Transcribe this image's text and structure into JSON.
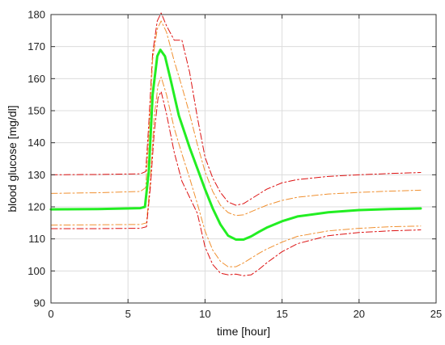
{
  "chart_data": {
    "type": "line",
    "title": "",
    "xlabel": "time [hour]",
    "ylabel": "blood glucose [mg/dl]",
    "xlim": [
      0,
      25
    ],
    "ylim": [
      90,
      180
    ],
    "xticks": [
      0,
      5,
      10,
      15,
      20,
      25
    ],
    "yticks": [
      90,
      100,
      110,
      120,
      130,
      140,
      150,
      160,
      170,
      180
    ],
    "grid": true,
    "legend": "none",
    "series": [
      {
        "color": "#dd1111",
        "style": "dashdot",
        "width": 1,
        "x": [
          0,
          3,
          5.8,
          6.15,
          6.35,
          6.6,
          6.9,
          7.15,
          7.5,
          8.0,
          8.5,
          9.0,
          9.5,
          10.0,
          10.5,
          11.0,
          11.5,
          12.0,
          12.5,
          13.0,
          13.5,
          14.0,
          15.0,
          16.0,
          18.0,
          20.0,
          22.0,
          24.0
        ],
        "y": [
          130.0,
          130.1,
          130.3,
          131.0,
          146.0,
          168.0,
          178.0,
          180.5,
          176.5,
          172.0,
          172.0,
          162.0,
          148.0,
          135.5,
          129.0,
          124.5,
          121.5,
          120.5,
          121.0,
          122.5,
          124.0,
          125.5,
          127.5,
          128.5,
          129.5,
          130.0,
          130.4,
          130.7
        ]
      },
      {
        "color": "#f09030",
        "style": "dashdot",
        "width": 1,
        "x": [
          0,
          3,
          5.8,
          6.15,
          6.35,
          6.6,
          6.9,
          7.15,
          7.5,
          8.0,
          8.5,
          9.0,
          9.5,
          10.0,
          10.5,
          11.0,
          11.5,
          12.0,
          12.5,
          13.0,
          13.5,
          14.0,
          15.0,
          16.0,
          18.0,
          20.0,
          22.0,
          24.0
        ],
        "y": [
          124.2,
          124.4,
          124.8,
          126.0,
          142.0,
          166.0,
          175.5,
          178.0,
          174.5,
          165.5,
          157.5,
          149.0,
          139.5,
          131.0,
          124.8,
          120.5,
          118.2,
          117.3,
          117.5,
          118.5,
          119.5,
          120.5,
          122.0,
          123.0,
          124.0,
          124.5,
          124.9,
          125.2
        ]
      },
      {
        "color": "#22ee22",
        "style": "solid",
        "width": 3,
        "x": [
          0,
          3,
          5.8,
          6.1,
          6.35,
          6.6,
          6.9,
          7.1,
          7.4,
          7.8,
          8.3,
          9.0,
          9.5,
          10.0,
          10.5,
          11.0,
          11.5,
          12.0,
          12.5,
          13.0,
          13.5,
          14.0,
          15.0,
          16.0,
          18.0,
          20.0,
          22.0,
          24.0
        ],
        "y": [
          119.2,
          119.3,
          119.6,
          120.0,
          131.0,
          155.0,
          167.0,
          169.0,
          167.0,
          159.0,
          148.5,
          138.5,
          132.0,
          125.5,
          119.5,
          114.5,
          111.0,
          109.8,
          109.8,
          110.8,
          112.2,
          113.5,
          115.5,
          117.0,
          118.3,
          119.0,
          119.3,
          119.5
        ]
      },
      {
        "color": "#f09030",
        "style": "dashdot",
        "width": 1,
        "x": [
          0,
          3,
          5.8,
          6.2,
          6.45,
          6.7,
          6.95,
          7.15,
          7.5,
          8.0,
          8.5,
          9.0,
          9.5,
          10.0,
          10.5,
          11.0,
          11.5,
          12.0,
          12.5,
          13.0,
          13.5,
          14.0,
          15.0,
          16.0,
          18.0,
          20.0,
          22.0,
          24.0
        ],
        "y": [
          114.3,
          114.4,
          114.5,
          115.0,
          128.0,
          148.0,
          158.0,
          160.5,
          155.0,
          144.5,
          136.5,
          129.0,
          121.0,
          112.5,
          106.5,
          103.0,
          101.3,
          101.3,
          102.5,
          104.0,
          105.5,
          106.8,
          109.0,
          110.8,
          112.5,
          113.3,
          113.8,
          114.0
        ]
      },
      {
        "color": "#dd1111",
        "style": "dashdot",
        "width": 1,
        "x": [
          0,
          3,
          5.8,
          6.2,
          6.45,
          6.7,
          6.95,
          7.15,
          7.5,
          8.0,
          8.5,
          9.0,
          9.5,
          10.0,
          10.5,
          11.0,
          11.5,
          12.0,
          12.5,
          13.0,
          13.5,
          14.0,
          15.0,
          16.0,
          18.0,
          20.0,
          22.0,
          24.0
        ],
        "y": [
          113.2,
          113.2,
          113.3,
          113.8,
          126.0,
          143.0,
          154.0,
          156.0,
          149.0,
          137.0,
          128.0,
          123.0,
          118.0,
          107.5,
          102.0,
          99.3,
          98.8,
          99.0,
          98.5,
          98.8,
          100.5,
          102.5,
          106.0,
          108.5,
          111.0,
          112.0,
          112.5,
          112.8
        ]
      }
    ]
  }
}
